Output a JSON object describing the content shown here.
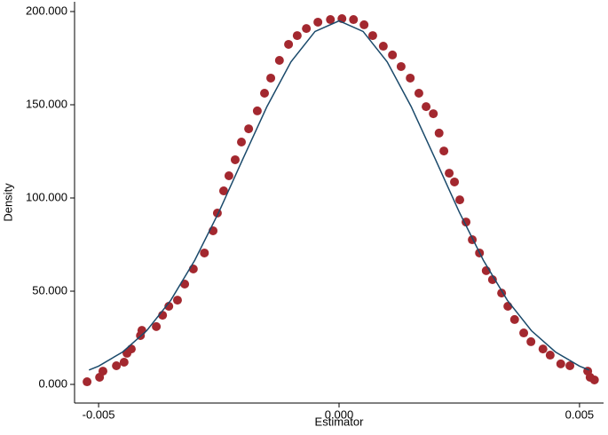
{
  "chart_data": {
    "type": "scatter",
    "x_label": "Estimator",
    "y_label": "Density",
    "xlim": [
      -0.0055,
      0.0055
    ],
    "ylim": [
      -10,
      205
    ],
    "xticks": [
      -0.005,
      {
        "value": 0,
        "label": "0.000"
      },
      0.005
    ],
    "yticks": [
      {
        "value": 0,
        "label": "0.000"
      },
      {
        "value": 50,
        "label": "50.000"
      },
      {
        "value": 100,
        "label": "100.000"
      },
      {
        "value": 150,
        "label": "150.000"
      },
      {
        "value": 200,
        "label": "200.000"
      }
    ],
    "series": [
      {
        "type": "scatter",
        "color": "#a3282f",
        "x": [
          -0.00524,
          -0.00498,
          -0.00491,
          -0.00463,
          -0.00447,
          -0.00441,
          -0.00432,
          -0.00413,
          -0.0041,
          -0.0038,
          -0.00367,
          -0.00354,
          -0.00336,
          -0.00321,
          -0.00303,
          -0.0028,
          -0.00262,
          -0.00253,
          -0.0024,
          -0.00229,
          -0.00216,
          -0.00203,
          -0.00188,
          -0.0017,
          -0.00155,
          -0.00142,
          -0.00124,
          -0.00105,
          -0.00087,
          -0.00068,
          -0.00044,
          -0.00018,
          6e-05,
          0.0003,
          0.00052,
          0.0007,
          0.00092,
          0.00111,
          0.00129,
          0.00148,
          0.00166,
          0.00181,
          0.00196,
          0.00208,
          0.00218,
          0.00229,
          0.0024,
          0.00251,
          0.00264,
          0.00277,
          0.00292,
          0.00306,
          0.00319,
          0.00338,
          0.00351,
          0.00365,
          0.00384,
          0.00399,
          0.00424,
          0.00439,
          0.00461,
          0.0048,
          0.00517,
          0.00522,
          0.00531
        ],
        "values": [
          1.4,
          3.8,
          7.1,
          10,
          11.9,
          16.7,
          19,
          26.2,
          29,
          31,
          37.1,
          41.9,
          45.2,
          53.8,
          61.9,
          70.5,
          82.4,
          91.9,
          103.8,
          111.9,
          120.5,
          130,
          137.1,
          146.7,
          156.2,
          164.3,
          173.8,
          182.4,
          187.1,
          190.9,
          194.3,
          195.7,
          196.2,
          195.7,
          192.9,
          187.1,
          181.4,
          176.7,
          170.5,
          164.3,
          156.2,
          149,
          145.2,
          134.8,
          125.2,
          113.3,
          108.6,
          99,
          87.1,
          77.6,
          70.5,
          61,
          56.2,
          49,
          41.9,
          34.8,
          27.6,
          22.9,
          19,
          15.7,
          11,
          10,
          7.1,
          3.8,
          2.4
        ]
      },
      {
        "type": "line",
        "color": "#1b4a6b",
        "x": [
          -0.0052,
          -0.005,
          -0.0045,
          -0.004,
          -0.0035,
          -0.003,
          -0.0025,
          -0.002,
          -0.0015,
          -0.001,
          -0.0005,
          0,
          0.0005,
          0.001,
          0.0015,
          0.002,
          0.0025,
          0.003,
          0.0035,
          0.004,
          0.0045,
          0.005,
          0.0052
        ],
        "values": [
          7.7,
          9.8,
          17.4,
          28.8,
          45.1,
          66.6,
          92.4,
          120.9,
          149,
          173,
          189.3,
          195,
          189.3,
          173,
          149,
          120.9,
          92.4,
          66.6,
          45.1,
          28.8,
          17.4,
          9.8,
          7.7
        ]
      }
    ]
  }
}
